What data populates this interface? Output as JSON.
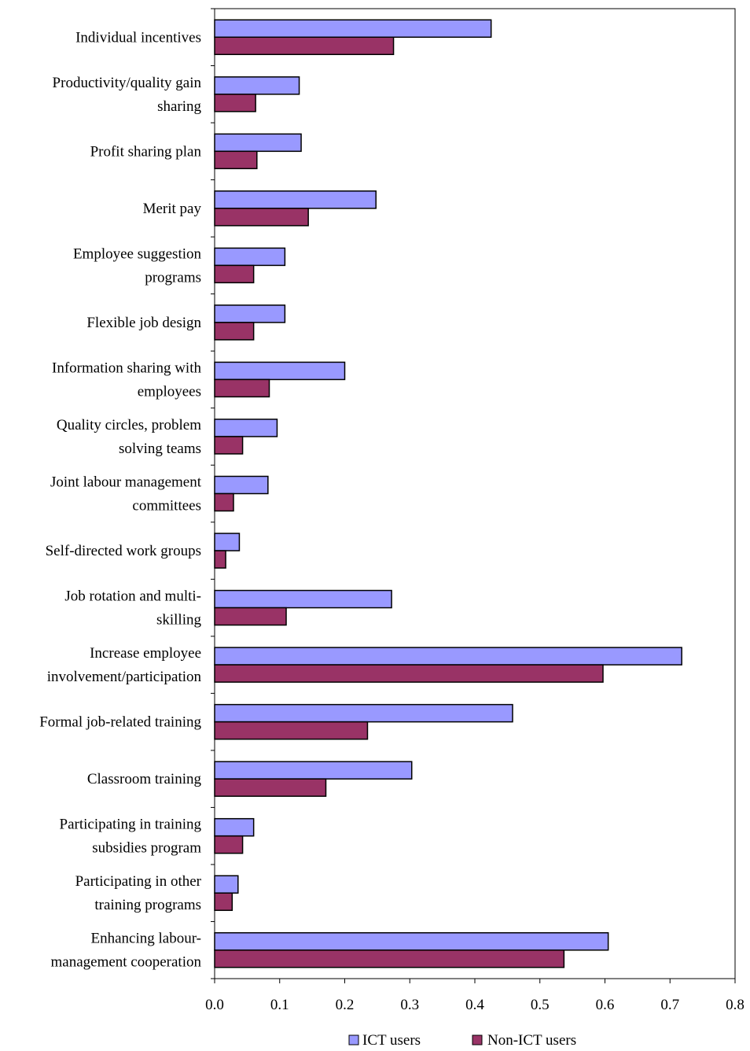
{
  "chart_data": {
    "type": "bar",
    "orientation": "horizontal",
    "categories": [
      [
        "Individual incentives"
      ],
      [
        "Productivity/quality gain",
        "sharing"
      ],
      [
        "Profit sharing plan"
      ],
      [
        "Merit pay"
      ],
      [
        "Employee suggestion",
        "programs"
      ],
      [
        "Flexible job design"
      ],
      [
        "Information sharing with",
        "employees"
      ],
      [
        "Quality circles, problem",
        "solving teams"
      ],
      [
        "Joint labour management",
        "committees"
      ],
      [
        "Self-directed work groups"
      ],
      [
        "Job rotation and multi-",
        "skilling"
      ],
      [
        "Increase employee",
        "involvement/participation"
      ],
      [
        "Formal job-related training"
      ],
      [
        "Classroom training"
      ],
      [
        "Participating in training",
        "subsidies program"
      ],
      [
        "Participating in other",
        "training programs"
      ],
      [
        "Enhancing labour-",
        "management cooperation"
      ]
    ],
    "series": [
      {
        "name": "ICT users",
        "color": "#9999ff",
        "values": [
          0.425,
          0.13,
          0.133,
          0.248,
          0.108,
          0.108,
          0.2,
          0.096,
          0.082,
          0.038,
          0.272,
          0.718,
          0.458,
          0.303,
          0.06,
          0.036,
          0.605
        ]
      },
      {
        "name": "Non-ICT users",
        "color": "#993366",
        "values": [
          0.275,
          0.063,
          0.065,
          0.144,
          0.06,
          0.06,
          0.084,
          0.043,
          0.029,
          0.017,
          0.11,
          0.597,
          0.235,
          0.171,
          0.043,
          0.027,
          0.537
        ]
      }
    ],
    "xlim": [
      0,
      0.8
    ],
    "xticks": [
      "0.0",
      "0.1",
      "0.2",
      "0.3",
      "0.4",
      "0.5",
      "0.6",
      "0.7",
      "0.8"
    ],
    "grid": false,
    "legend_position": "bottom",
    "title": "",
    "xlabel": "",
    "ylabel": ""
  }
}
